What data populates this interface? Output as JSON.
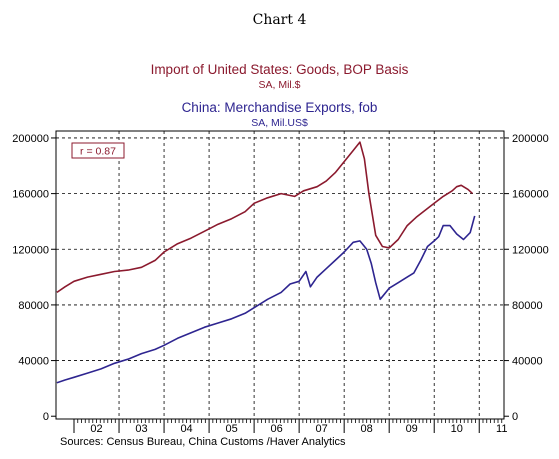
{
  "chart_title": "Chart 4",
  "colors": {
    "imports": "#8b1a2e",
    "exports": "#2e2590",
    "frame": "#000000"
  },
  "chart_data": {
    "type": "line",
    "annotation": "r = 0.87",
    "source": "Sources:  Census Bureau, China Customs /Haver Analytics",
    "ylim": [
      -2000,
      205000
    ],
    "yticks": [
      0,
      40000,
      80000,
      120000,
      160000,
      200000
    ],
    "ytick_labels": [
      "0",
      "40000",
      "80000",
      "120000",
      "160000",
      "200000"
    ],
    "xlim": [
      2001.6,
      2011.55
    ],
    "xlabels": [
      "02",
      "03",
      "04",
      "05",
      "06",
      "07",
      "08",
      "09",
      "10",
      "11"
    ],
    "grid": "dashed vertical at year boundaries, dashed horizontal at y ticks",
    "series": [
      {
        "name": "Import of United States: Goods, BOP Basis",
        "unit": "SA, Mil.$",
        "axis": "left",
        "color": "#8b1a2e",
        "x": [
          2001.62,
          2001.8,
          2002.0,
          2002.3,
          2002.6,
          2002.9,
          2003.2,
          2003.5,
          2003.8,
          2004.0,
          2004.3,
          2004.6,
          2004.9,
          2005.2,
          2005.5,
          2005.8,
          2006.0,
          2006.3,
          2006.6,
          2006.9,
          2007.1,
          2007.4,
          2007.6,
          2007.8,
          2008.0,
          2008.2,
          2008.35,
          2008.45,
          2008.55,
          2008.7,
          2008.85,
          2009.0,
          2009.2,
          2009.4,
          2009.6,
          2009.8,
          2010.0,
          2010.2,
          2010.4,
          2010.5,
          2010.6,
          2010.75,
          2010.85
        ],
        "y": [
          89000,
          93000,
          97000,
          100000,
          102000,
          104000,
          105000,
          107000,
          112000,
          118000,
          124000,
          128000,
          133000,
          138000,
          142000,
          147000,
          153000,
          157000,
          160000,
          158000,
          162000,
          165000,
          169000,
          175000,
          183000,
          191000,
          197000,
          185000,
          160000,
          130000,
          122000,
          121000,
          127000,
          137000,
          143000,
          148000,
          153000,
          158000,
          162000,
          165000,
          166000,
          163000,
          160000
        ]
      },
      {
        "name": "China: Merchandise Exports, fob",
        "unit": "SA, Mil.US$",
        "axis": "right",
        "color": "#2e2590",
        "x": [
          2001.62,
          2001.8,
          2002.0,
          2002.3,
          2002.6,
          2002.9,
          2003.2,
          2003.5,
          2003.8,
          2004.0,
          2004.3,
          2004.6,
          2004.9,
          2005.2,
          2005.5,
          2005.8,
          2006.0,
          2006.3,
          2006.6,
          2006.8,
          2007.0,
          2007.15,
          2007.25,
          2007.4,
          2007.6,
          2007.8,
          2008.0,
          2008.2,
          2008.35,
          2008.5,
          2008.6,
          2008.7,
          2008.8,
          2009.0,
          2009.2,
          2009.4,
          2009.55,
          2009.7,
          2009.85,
          2010.0,
          2010.1,
          2010.2,
          2010.35,
          2010.5,
          2010.65,
          2010.8,
          2010.9
        ],
        "y": [
          24000,
          26000,
          28000,
          31000,
          34000,
          38000,
          41000,
          45000,
          48000,
          51000,
          56000,
          60000,
          64000,
          67000,
          70000,
          74000,
          78000,
          84000,
          89000,
          95000,
          97000,
          104000,
          93000,
          100000,
          106000,
          112000,
          118000,
          125000,
          126000,
          120000,
          110000,
          96000,
          84000,
          92000,
          96000,
          100000,
          103000,
          112000,
          122000,
          126000,
          129000,
          137000,
          137000,
          131000,
          127000,
          132000,
          144000
        ]
      }
    ]
  }
}
